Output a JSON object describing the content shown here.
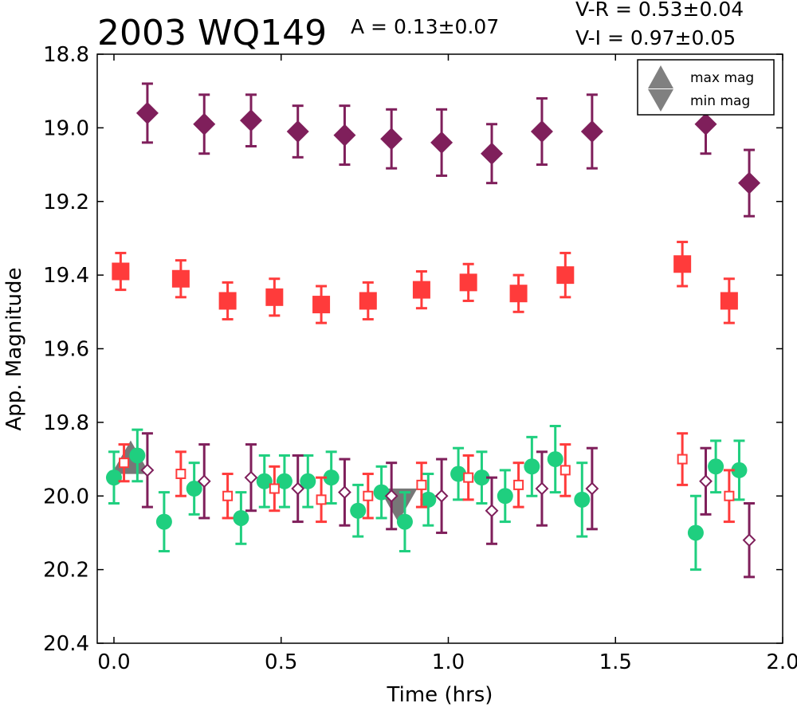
{
  "chart_data": {
    "type": "scatter",
    "title": "2003 WQ149",
    "xlabel": "Time (hrs)",
    "ylabel": "App. Magnitude",
    "xlim": [
      -0.05,
      2.0
    ],
    "ylim": [
      20.4,
      18.8
    ],
    "y_inverted": true,
    "grid": false,
    "xticks": [
      "0.0",
      "0.5",
      "1.0",
      "1.5",
      "2.0"
    ],
    "yticks": [
      "18.8",
      "19.0",
      "19.2",
      "19.4",
      "19.6",
      "19.8",
      "20.0",
      "20.2",
      "20.4"
    ],
    "annotations": {
      "amplitude": "A  = 0.13±0.07",
      "v_r": "V-R = 0.53±0.04",
      "v_i": "V-I  = 0.97±0.05"
    },
    "legend": {
      "position": "top-right",
      "entries": [
        {
          "label": "max mag",
          "marker": "triangle-up",
          "color": "#808080"
        },
        {
          "label": "min mag",
          "marker": "triangle-down",
          "color": "#808080"
        }
      ]
    },
    "markers": [
      {
        "type": "max",
        "x": 0.05,
        "y": 19.91
      },
      {
        "type": "min",
        "x": 0.85,
        "y": 20.01
      }
    ],
    "series": [
      {
        "style": "diamond-filled",
        "color": "#7f1f5b",
        "points": [
          {
            "x": 0.1,
            "y": 18.96,
            "err": 0.08
          },
          {
            "x": 0.27,
            "y": 18.99,
            "err": 0.08
          },
          {
            "x": 0.41,
            "y": 18.98,
            "err": 0.07
          },
          {
            "x": 0.55,
            "y": 19.01,
            "err": 0.07
          },
          {
            "x": 0.69,
            "y": 19.02,
            "err": 0.08
          },
          {
            "x": 0.83,
            "y": 19.03,
            "err": 0.08
          },
          {
            "x": 0.98,
            "y": 19.04,
            "err": 0.09
          },
          {
            "x": 1.13,
            "y": 19.07,
            "err": 0.08
          },
          {
            "x": 1.28,
            "y": 19.01,
            "err": 0.09
          },
          {
            "x": 1.43,
            "y": 19.01,
            "err": 0.1
          },
          {
            "x": 1.77,
            "y": 18.99,
            "err": 0.08
          },
          {
            "x": 1.9,
            "y": 19.15,
            "err": 0.09
          }
        ]
      },
      {
        "style": "square-filled",
        "color": "#ff3b3b",
        "points": [
          {
            "x": 0.02,
            "y": 19.39,
            "err": 0.05
          },
          {
            "x": 0.2,
            "y": 19.41,
            "err": 0.05
          },
          {
            "x": 0.34,
            "y": 19.47,
            "err": 0.05
          },
          {
            "x": 0.48,
            "y": 19.46,
            "err": 0.05
          },
          {
            "x": 0.62,
            "y": 19.48,
            "err": 0.05
          },
          {
            "x": 0.76,
            "y": 19.47,
            "err": 0.05
          },
          {
            "x": 0.92,
            "y": 19.44,
            "err": 0.05
          },
          {
            "x": 1.06,
            "y": 19.42,
            "err": 0.05
          },
          {
            "x": 1.21,
            "y": 19.45,
            "err": 0.05
          },
          {
            "x": 1.35,
            "y": 19.4,
            "err": 0.06
          },
          {
            "x": 1.7,
            "y": 19.37,
            "err": 0.06
          },
          {
            "x": 1.84,
            "y": 19.47,
            "err": 0.06
          }
        ]
      },
      {
        "style": "circle-filled",
        "color": "#1fcf7f",
        "points": [
          {
            "x": 0.0,
            "y": 19.95,
            "err": 0.07
          },
          {
            "x": 0.07,
            "y": 19.89,
            "err": 0.07
          },
          {
            "x": 0.15,
            "y": 20.07,
            "err": 0.08
          },
          {
            "x": 0.24,
            "y": 19.98,
            "err": 0.07
          },
          {
            "x": 0.38,
            "y": 20.06,
            "err": 0.07
          },
          {
            "x": 0.45,
            "y": 19.96,
            "err": 0.07
          },
          {
            "x": 0.51,
            "y": 19.96,
            "err": 0.07
          },
          {
            "x": 0.58,
            "y": 19.96,
            "err": 0.07
          },
          {
            "x": 0.65,
            "y": 19.95,
            "err": 0.07
          },
          {
            "x": 0.73,
            "y": 20.04,
            "err": 0.07
          },
          {
            "x": 0.8,
            "y": 19.99,
            "err": 0.07
          },
          {
            "x": 0.87,
            "y": 20.07,
            "err": 0.08
          },
          {
            "x": 0.94,
            "y": 20.01,
            "err": 0.07
          },
          {
            "x": 1.03,
            "y": 19.94,
            "err": 0.07
          },
          {
            "x": 1.1,
            "y": 19.95,
            "err": 0.07
          },
          {
            "x": 1.17,
            "y": 20.0,
            "err": 0.07
          },
          {
            "x": 1.25,
            "y": 19.92,
            "err": 0.08
          },
          {
            "x": 1.32,
            "y": 19.9,
            "err": 0.09
          },
          {
            "x": 1.4,
            "y": 20.01,
            "err": 0.1
          },
          {
            "x": 1.74,
            "y": 20.1,
            "err": 0.1
          },
          {
            "x": 1.8,
            "y": 19.92,
            "err": 0.07
          },
          {
            "x": 1.87,
            "y": 19.93,
            "err": 0.08
          }
        ]
      },
      {
        "style": "square-open",
        "color": "#ff3b3b",
        "points": [
          {
            "x": 0.03,
            "y": 19.91,
            "err": 0.05
          },
          {
            "x": 0.2,
            "y": 19.94,
            "err": 0.06
          },
          {
            "x": 0.34,
            "y": 20.0,
            "err": 0.06
          },
          {
            "x": 0.48,
            "y": 19.98,
            "err": 0.06
          },
          {
            "x": 0.62,
            "y": 20.01,
            "err": 0.06
          },
          {
            "x": 0.76,
            "y": 20.0,
            "err": 0.06
          },
          {
            "x": 0.92,
            "y": 19.97,
            "err": 0.06
          },
          {
            "x": 1.06,
            "y": 19.95,
            "err": 0.06
          },
          {
            "x": 1.21,
            "y": 19.97,
            "err": 0.06
          },
          {
            "x": 1.35,
            "y": 19.93,
            "err": 0.07
          },
          {
            "x": 1.7,
            "y": 19.9,
            "err": 0.07
          },
          {
            "x": 1.84,
            "y": 20.0,
            "err": 0.07
          }
        ]
      },
      {
        "style": "diamond-open",
        "color": "#7f1f5b",
        "points": [
          {
            "x": 0.1,
            "y": 19.93,
            "err": 0.1
          },
          {
            "x": 0.27,
            "y": 19.96,
            "err": 0.1
          },
          {
            "x": 0.41,
            "y": 19.95,
            "err": 0.09
          },
          {
            "x": 0.55,
            "y": 19.98,
            "err": 0.09
          },
          {
            "x": 0.69,
            "y": 19.99,
            "err": 0.09
          },
          {
            "x": 0.83,
            "y": 20.0,
            "err": 0.09
          },
          {
            "x": 0.98,
            "y": 20.0,
            "err": 0.1
          },
          {
            "x": 1.13,
            "y": 20.04,
            "err": 0.09
          },
          {
            "x": 1.28,
            "y": 19.98,
            "err": 0.1
          },
          {
            "x": 1.43,
            "y": 19.98,
            "err": 0.11
          },
          {
            "x": 1.77,
            "y": 19.96,
            "err": 0.09
          },
          {
            "x": 1.9,
            "y": 20.12,
            "err": 0.1
          }
        ]
      }
    ]
  }
}
